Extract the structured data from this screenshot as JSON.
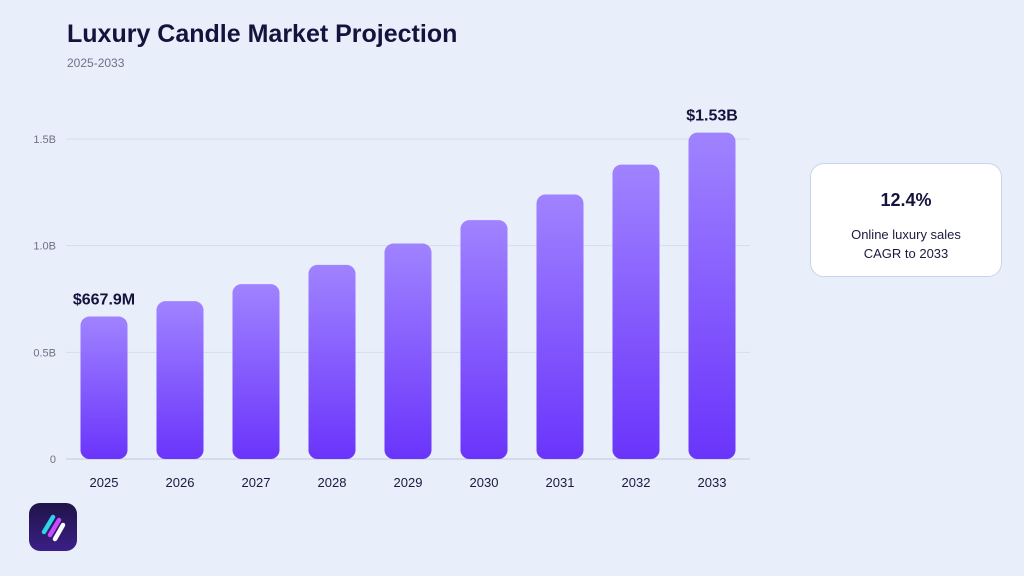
{
  "header": {
    "title": "Luxury Candle Market Projection",
    "subtitle": "2025-2033"
  },
  "kpi": {
    "value": "12.4%",
    "label_line1": "Online luxury sales",
    "label_line2": "CAGR to 2033"
  },
  "logo": {
    "icon": "brand-logo-icon"
  },
  "colors": {
    "bar_top": "#a083ff",
    "bar_bottom": "#6a34fb",
    "background": "#e8eefa",
    "title": "#15133d"
  },
  "chart_data": {
    "type": "bar",
    "categories": [
      "2025",
      "2026",
      "2027",
      "2028",
      "2029",
      "2030",
      "2031",
      "2032",
      "2033"
    ],
    "values": [
      0.6679,
      0.74,
      0.82,
      0.91,
      1.01,
      1.12,
      1.24,
      1.38,
      1.53
    ],
    "value_unit": "B",
    "y_ticks": [
      "0",
      "0.5B",
      "1.0B",
      "1.5B"
    ],
    "y_tick_values": [
      0,
      0.5,
      1.0,
      1.5
    ],
    "ylim": [
      0,
      1.5
    ],
    "grid": true,
    "data_labels": [
      {
        "index": 0,
        "text": "$667.9M"
      },
      {
        "index": 8,
        "text": "$1.53B"
      }
    ]
  }
}
